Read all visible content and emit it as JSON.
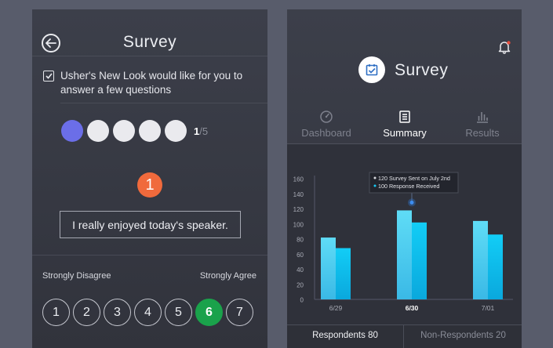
{
  "left_screen": {
    "title": "Survey",
    "intro_text": "Usher's New Look would like for you to answer a few questions",
    "progress": {
      "current": "1",
      "total": "/5",
      "answered": 1,
      "steps": 5
    },
    "question_number": "1",
    "question_text": "I really enjoyed today's speaker.",
    "scale_low_label": "Strongly Disagree",
    "scale_high_label": "Strongly Agree",
    "ratings": [
      "1",
      "2",
      "3",
      "4",
      "5",
      "6",
      "7"
    ],
    "selected_rating": "6"
  },
  "right_screen": {
    "title": "Survey",
    "tabs": [
      {
        "label": "Dashboard",
        "icon": "gauge-icon",
        "active": false
      },
      {
        "label": "Summary",
        "icon": "document-icon",
        "active": true
      },
      {
        "label": "Results",
        "icon": "bar-chart-icon",
        "active": false
      }
    ],
    "footer": {
      "respondents": "Respondents 80",
      "non_respondents": "Non-Respondents 20"
    }
  },
  "colors": {
    "accent_purple": "#6b6ee8",
    "accent_orange": "#f06a3c",
    "selected_green": "#1aa24b",
    "bar_light": "#4fd3f3",
    "bar_dark": "#0ec3ee"
  },
  "chart_data": {
    "type": "bar",
    "categories": [
      "6/29",
      "6/30",
      "7/01"
    ],
    "series": [
      {
        "values": [
          82,
          118,
          104
        ]
      },
      {
        "values": [
          68,
          102,
          86
        ]
      }
    ],
    "ylim": [
      0,
      160
    ],
    "yticks": [
      "0",
      "20",
      "40",
      "60",
      "80",
      "100",
      "120",
      "140",
      "160"
    ],
    "highlight_category": "6/30",
    "tooltip": [
      "120 Survey Sent on July 2nd",
      "100 Response Received"
    ],
    "grid": false
  }
}
